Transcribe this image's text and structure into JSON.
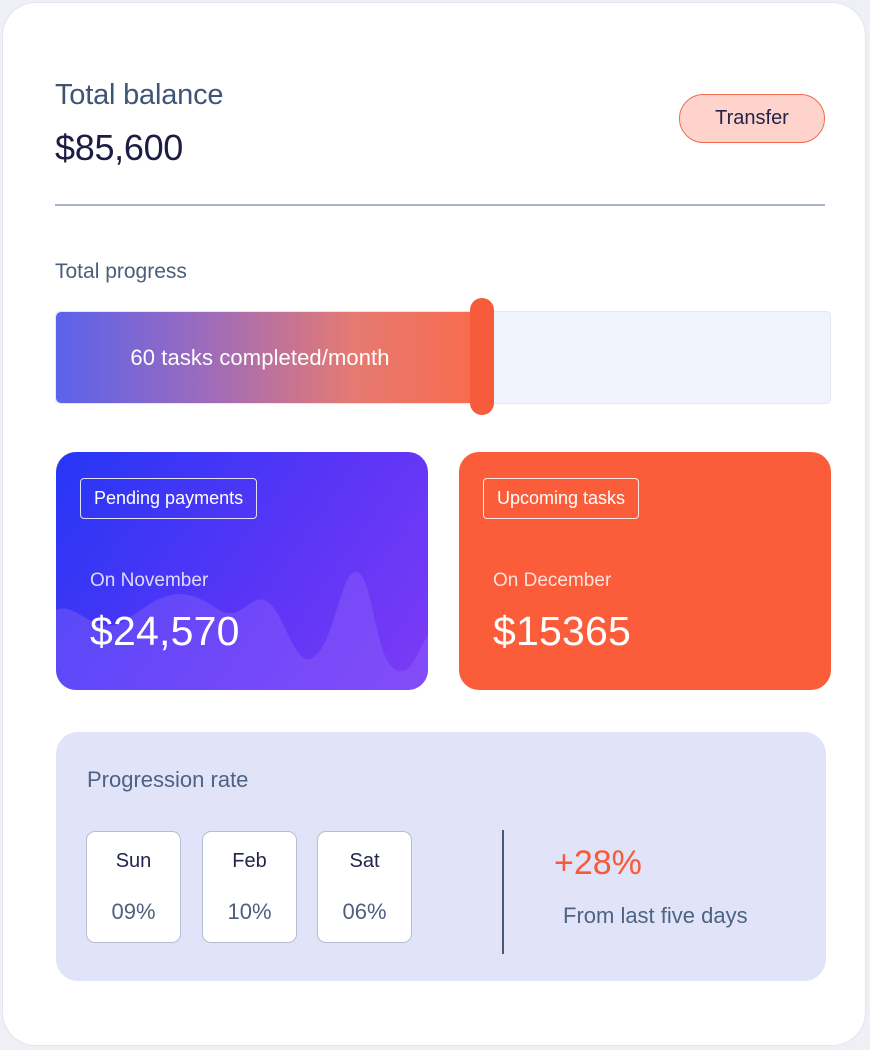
{
  "balance": {
    "title": "Total balance",
    "amount": "$85,600",
    "transfer_label": "Transfer"
  },
  "progress": {
    "label": "Total progress",
    "text": "60 tasks completed/month",
    "fraction": 0.55
  },
  "pending": {
    "chip": "Pending payments",
    "sub": "On November",
    "value": "$24,570"
  },
  "upcoming": {
    "chip": "Upcoming tasks",
    "sub": "On December",
    "value": "$15365"
  },
  "rate": {
    "title": "Progression rate",
    "days": [
      {
        "name": "Sun",
        "pct": "09%"
      },
      {
        "name": "Feb",
        "pct": "10%"
      },
      {
        "name": "Sat",
        "pct": "06%"
      }
    ],
    "change": "+28%",
    "caption": "From last five days"
  },
  "colors": {
    "accent_orange": "#fb5c39",
    "accent_blue": "#2537f5",
    "panel_lavender": "#e1e4f8"
  }
}
